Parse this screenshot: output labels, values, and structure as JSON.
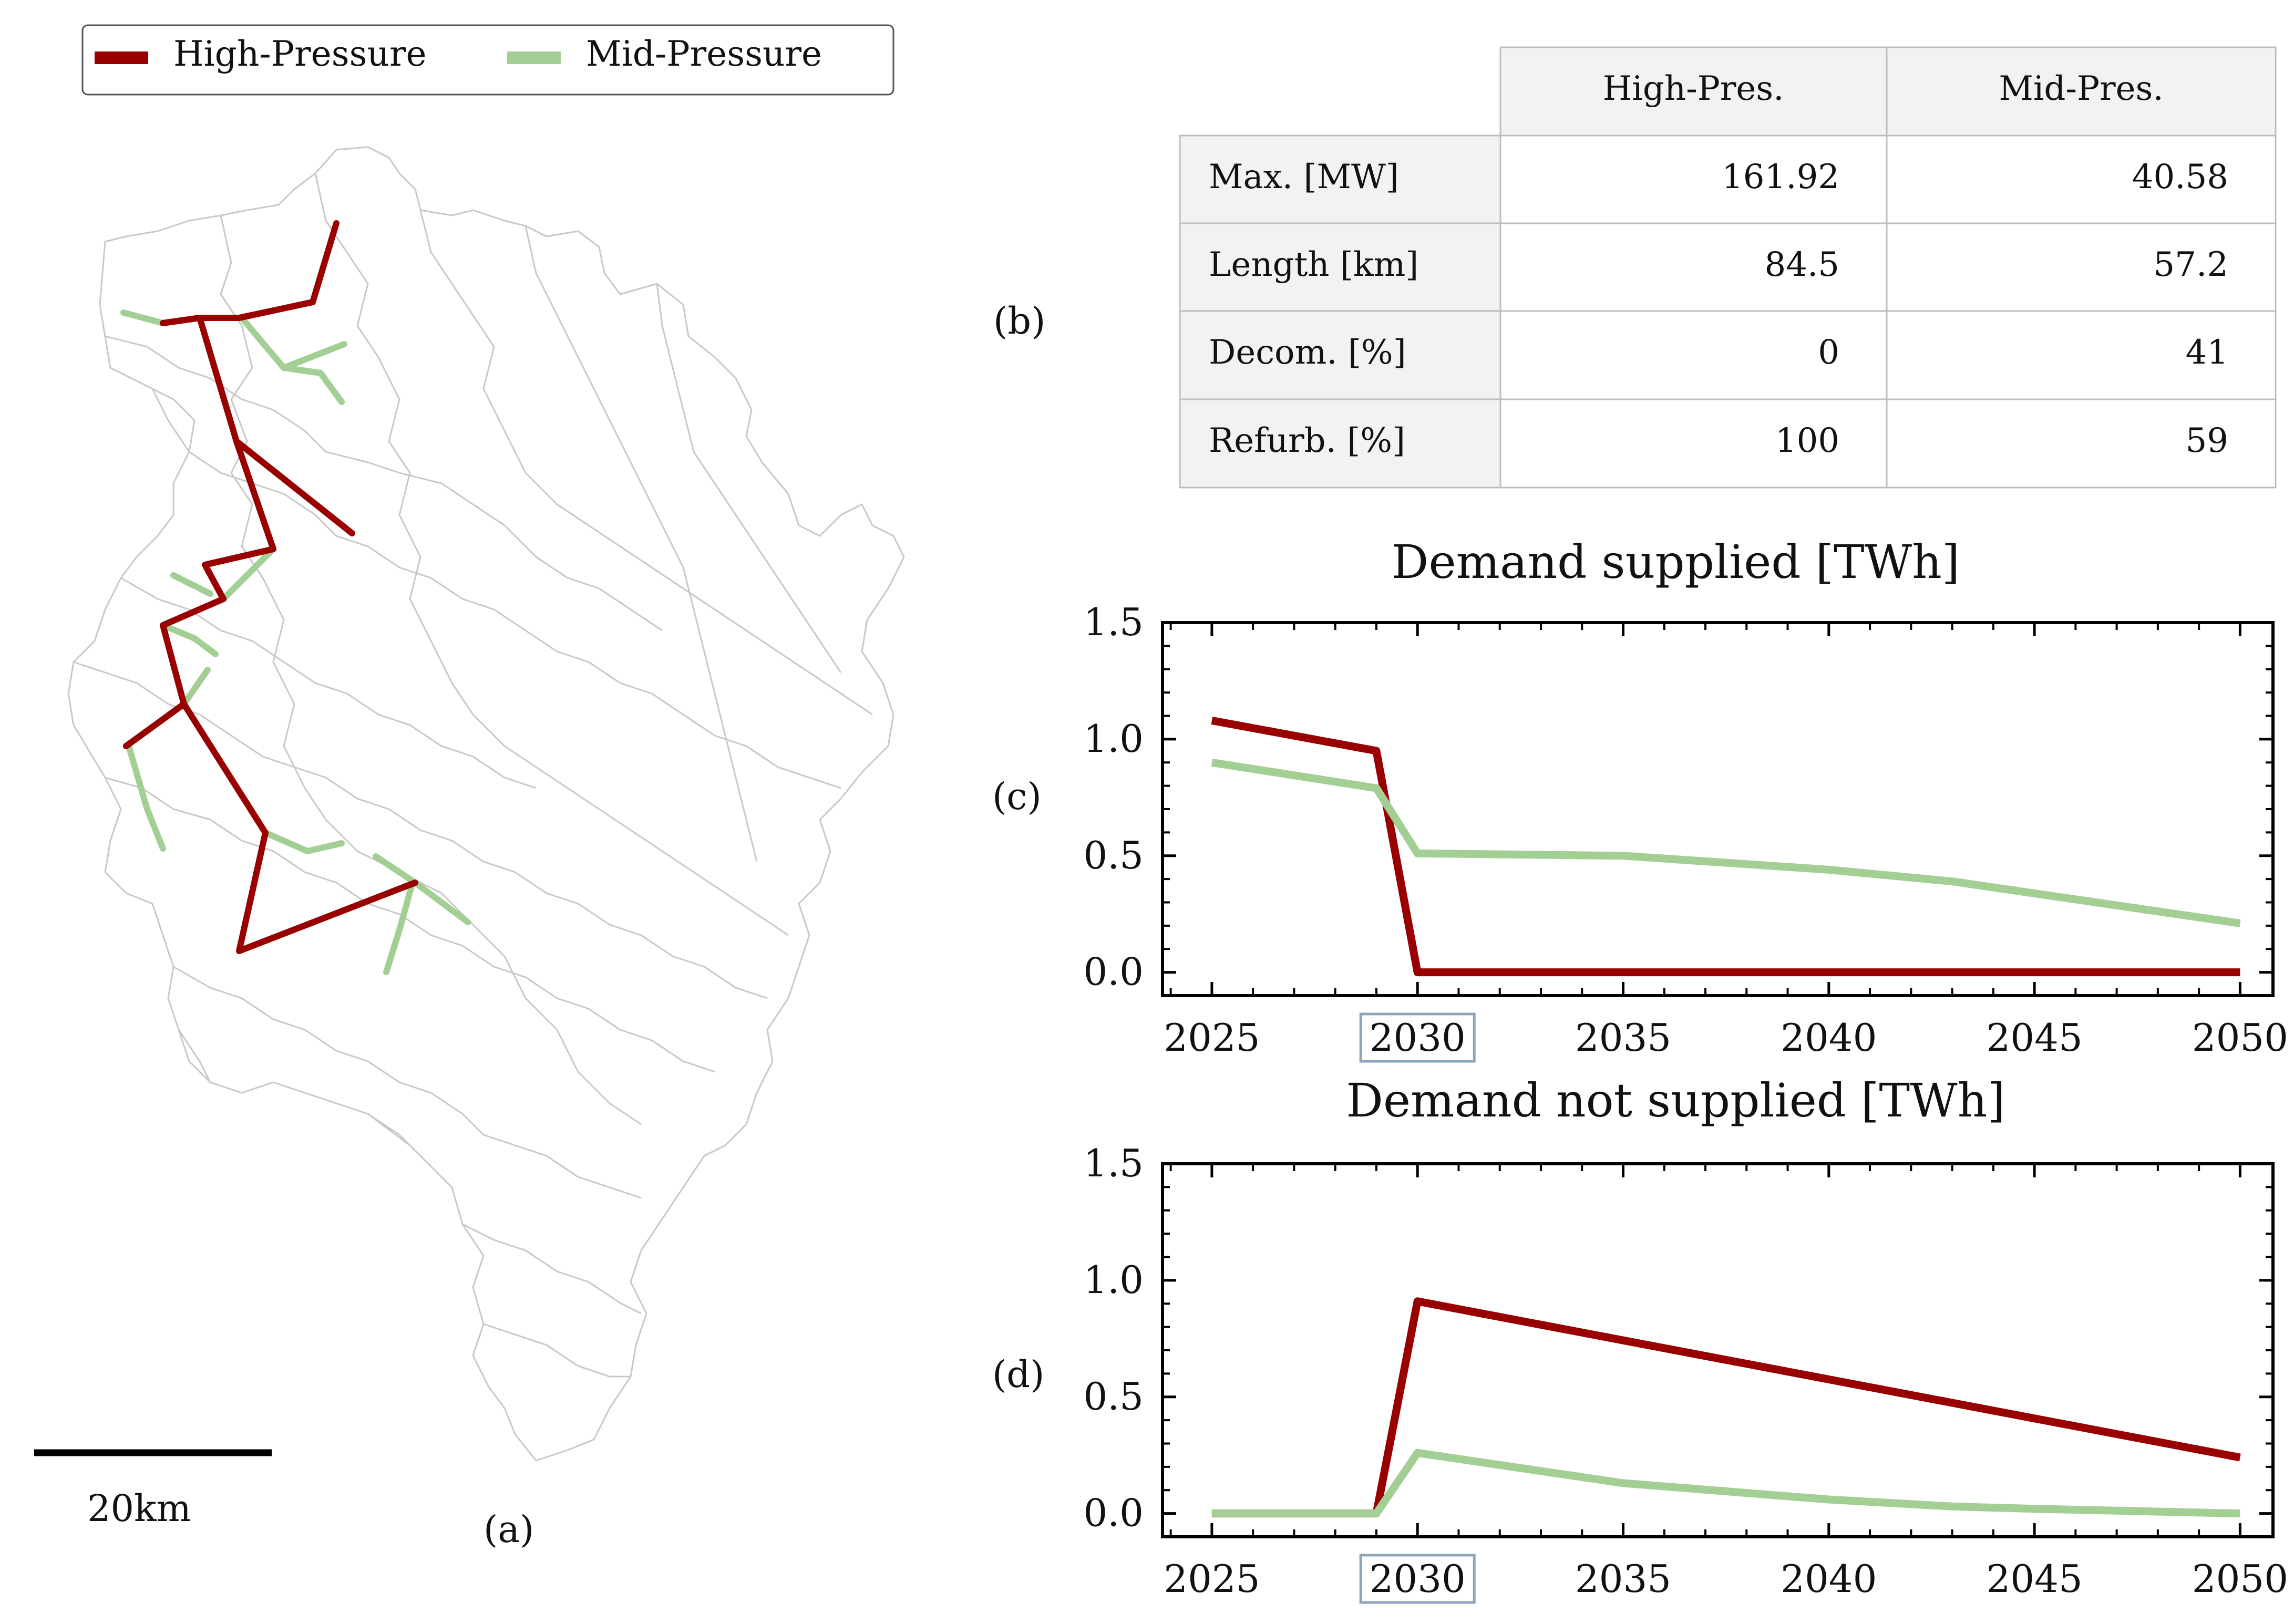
{
  "colors": {
    "high_pressure": "#990000",
    "mid_pressure": "#a3cf94",
    "region_border": "#c8c8c8",
    "axis": "#000000",
    "highlight_box": "#90a4b8"
  },
  "map_panel": {
    "panel_label": "(a)",
    "legend": {
      "high": "High-Pressure",
      "mid": "Mid-Pressure"
    },
    "scalebar_label": "20km"
  },
  "table_panel": {
    "panel_label": "(b)",
    "columns": [
      "High-Pres.",
      "Mid-Pres."
    ],
    "rows": [
      {
        "label": "Max. [MW]",
        "values": [
          "161.92",
          "40.58"
        ]
      },
      {
        "label": "Length [km]",
        "values": [
          "84.5",
          "57.2"
        ]
      },
      {
        "label": "Decom. [%]",
        "values": [
          "0",
          "41"
        ]
      },
      {
        "label": "Refurb. [%]",
        "values": [
          "100",
          "59"
        ]
      }
    ]
  },
  "chart_data": [
    {
      "type": "line",
      "panel_label": "(c)",
      "title": "Demand supplied [TWh]",
      "xlabel": "",
      "ylabel": "",
      "xlim": [
        2023.8,
        2050.8
      ],
      "ylim": [
        -0.1,
        1.5
      ],
      "yticks": [
        "0.0",
        "0.5",
        "1.0",
        "1.5"
      ],
      "xticks": [
        "2025",
        "2030",
        "2035",
        "2040",
        "2045",
        "2050"
      ],
      "highlighted_xtick": "2030",
      "grid": false,
      "series": [
        {
          "key": "high",
          "x": [
            2025,
            2029,
            2030,
            2035,
            2040,
            2045,
            2050
          ],
          "y": [
            1.08,
            0.95,
            0.0,
            0.0,
            0.0,
            0.0,
            0.0
          ]
        },
        {
          "key": "mid",
          "x": [
            2025,
            2029,
            2030,
            2035,
            2040,
            2043,
            2050
          ],
          "y": [
            0.9,
            0.79,
            0.51,
            0.5,
            0.44,
            0.39,
            0.21
          ]
        }
      ]
    },
    {
      "type": "line",
      "panel_label": "(d)",
      "title": "Demand not supplied [TWh]",
      "xlabel": "",
      "ylabel": "",
      "xlim": [
        2023.8,
        2050.8
      ],
      "ylim": [
        -0.1,
        1.5
      ],
      "yticks": [
        "0.0",
        "0.5",
        "1.0",
        "1.5"
      ],
      "xticks": [
        "2025",
        "2030",
        "2035",
        "2040",
        "2045",
        "2050"
      ],
      "highlighted_xtick": "2030",
      "grid": false,
      "series": [
        {
          "key": "high",
          "x": [
            2025,
            2029,
            2030,
            2050
          ],
          "y": [
            0.0,
            0.0,
            0.91,
            0.24
          ]
        },
        {
          "key": "mid",
          "x": [
            2025,
            2029,
            2030,
            2035,
            2040,
            2043,
            2045,
            2050
          ],
          "y": [
            0.0,
            0.0,
            0.26,
            0.13,
            0.06,
            0.03,
            0.02,
            0.0
          ]
        }
      ]
    }
  ]
}
